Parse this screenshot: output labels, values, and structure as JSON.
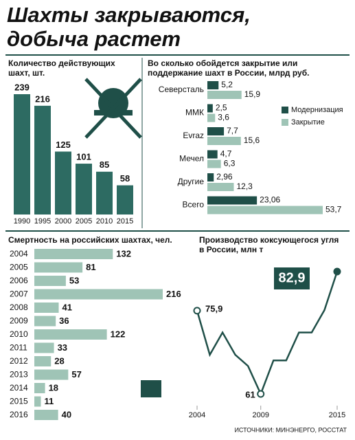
{
  "header": {
    "title": "Шахты закрываются, добыча растет"
  },
  "source": "ИСТОЧНИКИ: МИНЭНЕРГО, РОССТАТ",
  "chart_data": [
    {
      "type": "bar",
      "title": "Количество действующих шахт, шт.",
      "categories": [
        "1990",
        "1995",
        "2000",
        "2005",
        "2010",
        "2015"
      ],
      "values": [
        239,
        216,
        125,
        101,
        85,
        58
      ],
      "color": "#2d6b62"
    },
    {
      "type": "hbar-grouped",
      "title": "Во сколько обойдется закрытие или поддержание шахт в России, млрд руб.",
      "categories": [
        "Северсталь",
        "ММК",
        "Evraz",
        "Мечел",
        "Другие",
        "Всего"
      ],
      "series": [
        {
          "name": "Модернизация",
          "color": "#1f4f48",
          "values": [
            5.2,
            2.5,
            7.7,
            4.7,
            2.96,
            23.06
          ],
          "value_labels": [
            "5,2",
            "2,5",
            "7,7",
            "4,7",
            "2,96",
            "23,06"
          ]
        },
        {
          "name": "Закрытие",
          "color": "#9fc4b6",
          "values": [
            15.9,
            3.6,
            15.6,
            6.3,
            12.3,
            53.7
          ],
          "value_labels": [
            "15,9",
            "3,6",
            "15,6",
            "6,3",
            "12,3",
            "53,7"
          ]
        }
      ]
    },
    {
      "type": "hbar",
      "title": "Смертность на российских шахтах, чел.",
      "categories": [
        "2004",
        "2005",
        "2006",
        "2007",
        "2008",
        "2009",
        "2010",
        "2011",
        "2012",
        "2013",
        "2014",
        "2015",
        "2016"
      ],
      "values": [
        132,
        81,
        53,
        216,
        41,
        36,
        122,
        33,
        28,
        57,
        18,
        11,
        40
      ],
      "color": "#9fc4b6"
    },
    {
      "type": "line",
      "title": "Производство коксующегося угля в России, млн т",
      "x": [
        2004,
        2005,
        2006,
        2007,
        2008,
        2009,
        2010,
        2011,
        2012,
        2013,
        2014,
        2015
      ],
      "values": [
        75.9,
        68,
        72,
        68,
        66,
        61,
        67,
        67,
        72,
        72,
        76,
        82.9
      ],
      "value_labels": [
        "75,9",
        null,
        null,
        null,
        null,
        "61",
        null,
        null,
        null,
        null,
        null,
        "82,9"
      ],
      "xlim": [
        2004,
        2015
      ],
      "xticks": [
        2004,
        2009,
        2015
      ],
      "color": "#1f4f48"
    }
  ]
}
